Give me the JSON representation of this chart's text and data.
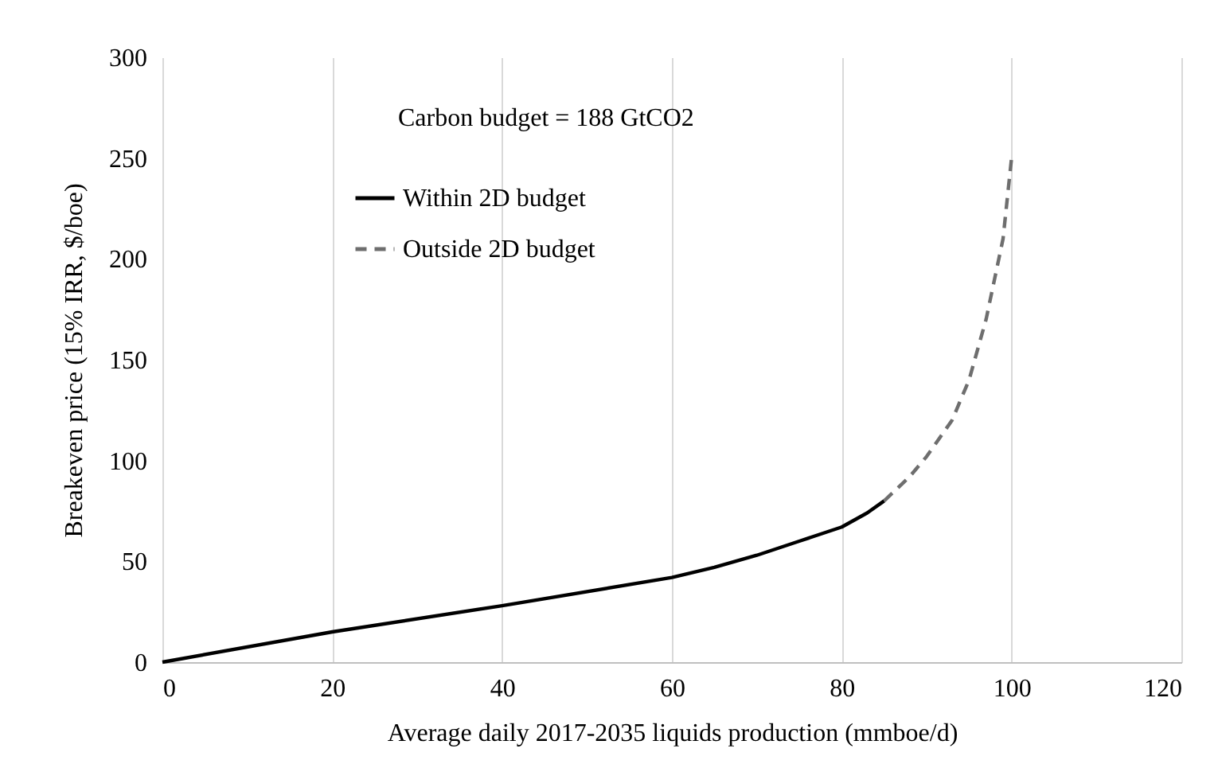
{
  "chart_data": {
    "type": "line",
    "xlabel": "Average daily 2017-2035 liquids production (mmboe/d)",
    "ylabel": "Breakeven price (15% IRR, $/boe)",
    "annotations": [
      "Carbon budget = 188 GtCO2"
    ],
    "series": [
      {
        "name": "Within 2D budget",
        "color": "#000000",
        "line_style": "solid",
        "x": [
          0,
          20,
          40,
          60,
          65,
          70,
          75,
          80,
          83,
          85
        ],
        "values": [
          0,
          15,
          28,
          42,
          47,
          53,
          60,
          67,
          74,
          80
        ]
      },
      {
        "name": "Outside 2D budget",
        "color": "#6e6e6e",
        "line_style": "dashed",
        "x": [
          85,
          88,
          90,
          93,
          95,
          97,
          99,
          100
        ],
        "values": [
          80,
          92,
          102,
          120,
          140,
          170,
          210,
          250
        ]
      }
    ],
    "xlim": [
      0,
      120
    ],
    "xticks": [
      0,
      20,
      40,
      60,
      80,
      100,
      120
    ],
    "ylim": [
      0,
      300
    ],
    "yticks": [
      0,
      50,
      100,
      150,
      200,
      250,
      300
    ],
    "grid": "x",
    "legend": "top left",
    "marker": "none"
  }
}
